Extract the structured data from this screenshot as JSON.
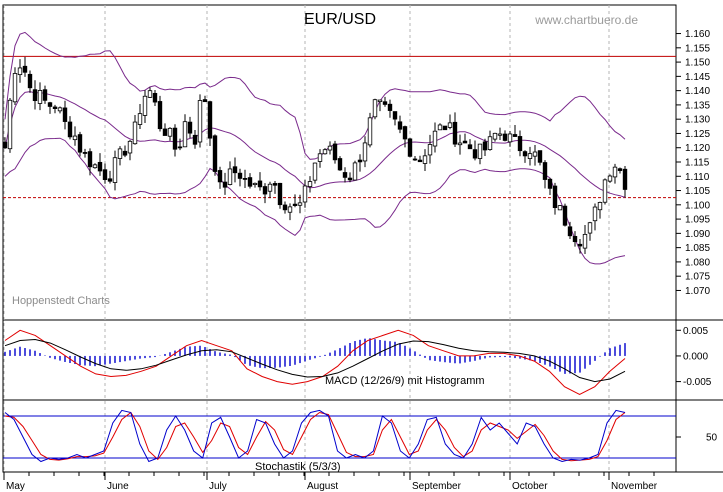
{
  "chart_data": {
    "type": "candlestick",
    "title": "EUR/USD",
    "watermark": "www.chartbuero.de",
    "source_label": "Hoppenstedt Charts",
    "months": [
      "May",
      "June",
      "July",
      "August",
      "September",
      "October",
      "November"
    ],
    "price_panel": {
      "ylim": [
        1.06,
        1.17
      ],
      "ticks": [
        "1.160",
        "1.155",
        "1.150",
        "1.145",
        "1.140",
        "1.135",
        "1.130",
        "1.125",
        "1.120",
        "1.115",
        "1.110",
        "1.105",
        "1.100",
        "1.095",
        "1.090",
        "1.085",
        "1.080",
        "1.075",
        "1.070"
      ],
      "resistance": 1.152,
      "last_level": 1.1025,
      "close_path": [
        1.12,
        1.148,
        1.15,
        1.14,
        1.138,
        1.135,
        1.135,
        1.128,
        1.125,
        1.118,
        1.115,
        1.112,
        1.11,
        1.115,
        1.12,
        1.125,
        1.138,
        1.14,
        1.128,
        1.125,
        1.118,
        1.13,
        1.122,
        1.142,
        1.12,
        1.105,
        1.11,
        1.112,
        1.108,
        1.106,
        1.105,
        1.11,
        1.102,
        1.1,
        1.098,
        1.105,
        1.115,
        1.12,
        1.118,
        1.112,
        1.11,
        1.115,
        1.125,
        1.135,
        1.133,
        1.13,
        1.125,
        1.12,
        1.115,
        1.12,
        1.125,
        1.128,
        1.125,
        1.122,
        1.12,
        1.118,
        1.12,
        1.125,
        1.125,
        1.122,
        1.12,
        1.12,
        1.115,
        1.105,
        1.1,
        1.095,
        1.09,
        1.088,
        1.092,
        1.102,
        1.112,
        1.115,
        1.108
      ]
    },
    "macd_panel": {
      "label": "MACD (12/26/9) mit Histogramm",
      "ylim": [
        -0.008,
        0.007
      ],
      "ticks": [
        "0.005",
        "0.000",
        "-0.005"
      ],
      "macd": [
        0.003,
        0.005,
        0.004,
        0.002,
        0.0,
        -0.002,
        -0.0035,
        -0.004,
        -0.0038,
        -0.003,
        -0.002,
        0.0,
        0.002,
        0.003,
        0.002,
        0.001,
        -0.0025,
        -0.004,
        -0.005,
        -0.0055,
        -0.005,
        -0.004,
        -0.002,
        0.001,
        0.003,
        0.004,
        0.005,
        0.004,
        0.002,
        0.001,
        0.0,
        0.0,
        0.0005,
        0.0005,
        0.0,
        -0.001,
        -0.003,
        -0.006,
        -0.0075,
        -0.006,
        -0.003,
        -0.0005
      ],
      "signal": [
        0.002,
        0.003,
        0.0032,
        0.0025,
        0.0012,
        -0.0002,
        -0.0015,
        -0.0025,
        -0.0028,
        -0.0025,
        -0.0018,
        -0.0008,
        0.0002,
        0.001,
        0.0012,
        0.0008,
        -0.0004,
        -0.0016,
        -0.0027,
        -0.0036,
        -0.0041,
        -0.004,
        -0.0033,
        -0.002,
        -0.0005,
        0.001,
        0.0023,
        0.0029,
        0.0028,
        0.0022,
        0.0015,
        0.001,
        0.0008,
        0.0007,
        0.0005,
        0.0,
        -0.001,
        -0.0025,
        -0.0042,
        -0.005,
        -0.0045,
        -0.003
      ],
      "histogram": [
        0.0008,
        0.0018,
        0.001,
        -0.0004,
        -0.0012,
        -0.0018,
        -0.002,
        -0.0015,
        -0.001,
        -0.0005,
        -0.0002,
        0.0008,
        0.0018,
        0.002,
        0.0008,
        0.0002,
        -0.0018,
        -0.0024,
        -0.0023,
        -0.0019,
        -0.0009,
        0.0,
        0.0013,
        0.0028,
        0.0035,
        0.003,
        0.0027,
        0.0011,
        -0.0008,
        -0.0012,
        -0.0015,
        -0.001,
        -0.0003,
        -0.0002,
        -0.0005,
        -0.001,
        -0.002,
        -0.0035,
        -0.0033,
        -0.001,
        0.0015,
        0.0025
      ]
    },
    "stoch_panel": {
      "label": "Stochastik (5/3/3)",
      "ylim": [
        0,
        100
      ],
      "ticks": [
        "50"
      ],
      "upper_line": 80,
      "lower_line": 20,
      "k": [
        85,
        75,
        50,
        25,
        15,
        20,
        18,
        20,
        25,
        20,
        25,
        30,
        70,
        88,
        85,
        40,
        15,
        20,
        60,
        80,
        60,
        30,
        20,
        70,
        78,
        50,
        20,
        30,
        75,
        70,
        40,
        20,
        30,
        70,
        85,
        88,
        80,
        30,
        20,
        25,
        20,
        30,
        80,
        70,
        30,
        20,
        40,
        75,
        78,
        40,
        25,
        20,
        40,
        78,
        60,
        70,
        55,
        40,
        70,
        65,
        40,
        20,
        15,
        18,
        17,
        20,
        25,
        70,
        88,
        85
      ],
      "d": [
        80,
        78,
        65,
        45,
        25,
        18,
        17,
        19,
        22,
        22,
        23,
        27,
        50,
        75,
        85,
        65,
        30,
        18,
        35,
        65,
        70,
        50,
        28,
        45,
        70,
        65,
        35,
        25,
        50,
        72,
        60,
        32,
        25,
        50,
        75,
        85,
        82,
        55,
        28,
        22,
        22,
        25,
        60,
        75,
        50,
        25,
        30,
        60,
        75,
        60,
        35,
        22,
        30,
        60,
        70,
        65,
        60,
        48,
        58,
        68,
        52,
        30,
        18,
        16,
        17,
        18,
        22,
        45,
        75,
        85
      ]
    }
  }
}
